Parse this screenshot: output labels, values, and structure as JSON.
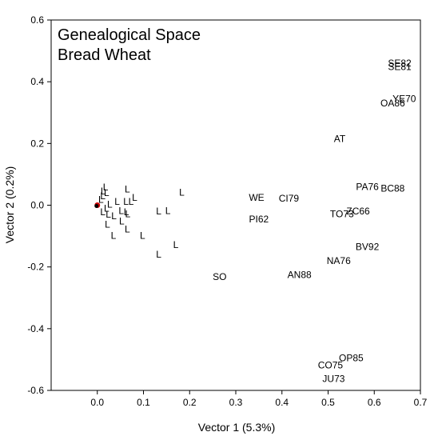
{
  "chart_data": {
    "type": "scatter",
    "title_lines": [
      "Genealogical Space",
      "Bread Wheat"
    ],
    "xlabel": "Vector 1 (5.3%)",
    "ylabel": "Vector 2 (0.2%)",
    "xlim": [
      -0.1,
      0.7
    ],
    "ylim": [
      -0.6,
      0.6
    ],
    "xticks": [
      "0.0",
      "0.1",
      "0.2",
      "0.3",
      "0.4",
      "0.5",
      "0.6",
      "0.7"
    ],
    "yticks": [
      "-0.6",
      "-0.4",
      "-0.2",
      "0.0",
      "0.2",
      "0.4",
      "0.6"
    ],
    "grid": false,
    "legend": "none",
    "points": [
      {
        "label": "SE82",
        "x": 0.655,
        "y": 0.46
      },
      {
        "label": "SE81",
        "x": 0.655,
        "y": 0.448
      },
      {
        "label": "YE70",
        "x": 0.665,
        "y": 0.345
      },
      {
        "label": "OA86",
        "x": 0.64,
        "y": 0.33
      },
      {
        "label": "AT",
        "x": 0.525,
        "y": 0.215
      },
      {
        "label": "PA76",
        "x": 0.585,
        "y": 0.06
      },
      {
        "label": "BC88",
        "x": 0.64,
        "y": 0.055
      },
      {
        "label": "ZC66",
        "x": 0.565,
        "y": -0.02
      },
      {
        "label": "TO73",
        "x": 0.53,
        "y": -0.028
      },
      {
        "label": "BV92",
        "x": 0.585,
        "y": -0.135
      },
      {
        "label": "NA76",
        "x": 0.523,
        "y": -0.18
      },
      {
        "label": "WE",
        "x": 0.345,
        "y": 0.025
      },
      {
        "label": "CI79",
        "x": 0.415,
        "y": 0.022
      },
      {
        "label": "PI62",
        "x": 0.35,
        "y": -0.045
      },
      {
        "label": "SO",
        "x": 0.265,
        "y": -0.232
      },
      {
        "label": "AN88",
        "x": 0.438,
        "y": -0.225
      },
      {
        "label": "OP85",
        "x": 0.55,
        "y": -0.495
      },
      {
        "label": "CO75",
        "x": 0.505,
        "y": -0.518
      },
      {
        "label": "JU73",
        "x": 0.512,
        "y": -0.562
      },
      {
        "label": "L",
        "x": 0.018,
        "y": 0.058
      },
      {
        "label": "L",
        "x": 0.013,
        "y": 0.045
      },
      {
        "label": "L",
        "x": 0.02,
        "y": 0.04
      },
      {
        "label": "L",
        "x": 0.012,
        "y": 0.03
      },
      {
        "label": "L",
        "x": 0.008,
        "y": 0.018
      },
      {
        "label": "L",
        "x": 0.027,
        "y": 0.002
      },
      {
        "label": "L",
        "x": 0.043,
        "y": 0.012
      },
      {
        "label": "L",
        "x": 0.065,
        "y": 0.052
      },
      {
        "label": "L",
        "x": 0.081,
        "y": 0.025
      },
      {
        "label": "L",
        "x": 0.073,
        "y": 0.012
      },
      {
        "label": "L",
        "x": 0.062,
        "y": 0.012
      },
      {
        "label": "L",
        "x": 0.052,
        "y": -0.018
      },
      {
        "label": "L",
        "x": 0.063,
        "y": -0.022
      },
      {
        "label": "L",
        "x": 0.066,
        "y": -0.028
      },
      {
        "label": "L",
        "x": 0.02,
        "y": -0.01
      },
      {
        "label": "L",
        "x": 0.012,
        "y": -0.022
      },
      {
        "label": "L",
        "x": 0.024,
        "y": -0.03
      },
      {
        "label": "L",
        "x": 0.036,
        "y": -0.035
      },
      {
        "label": "L",
        "x": 0.053,
        "y": -0.052
      },
      {
        "label": "L",
        "x": 0.022,
        "y": -0.062
      },
      {
        "label": "L",
        "x": 0.065,
        "y": -0.078
      },
      {
        "label": "L",
        "x": 0.035,
        "y": -0.098
      },
      {
        "label": "L",
        "x": 0.098,
        "y": -0.098
      },
      {
        "label": "L",
        "x": 0.183,
        "y": 0.042
      },
      {
        "label": "L",
        "x": 0.133,
        "y": -0.02
      },
      {
        "label": "L",
        "x": 0.153,
        "y": -0.018
      },
      {
        "label": "L",
        "x": 0.17,
        "y": -0.128
      },
      {
        "label": "L",
        "x": 0.133,
        "y": -0.16
      }
    ],
    "origin_marker": {
      "x": 0.0,
      "y": 0.0,
      "color": "#cc0000"
    }
  }
}
